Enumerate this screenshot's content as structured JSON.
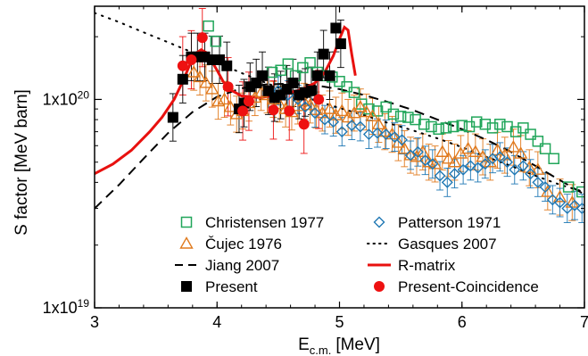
{
  "chart_data": {
    "type": "scatter",
    "xlabel": {
      "main": "E",
      "sub": "c.m.",
      "unit": "[MeV]"
    },
    "ylabel": "S factor [MeV barn]",
    "xlim": [
      3,
      7
    ],
    "ylim": [
      1e+19,
      2.8e+20
    ],
    "yscale": "log",
    "xticks": [
      "3",
      "4",
      "5",
      "6",
      "7"
    ],
    "yticks": [
      {
        "value": 1e+19,
        "base": "1x10",
        "exp": "19"
      },
      {
        "value": 1e+20,
        "base": "1x10",
        "exp": "20"
      }
    ],
    "legend_position": "bottom",
    "series": [
      {
        "name": "Christensen 1977",
        "marker": "open-square",
        "color": "#21a65a",
        "points": [
          [
            3.93,
            2.25e+20
          ],
          [
            3.99,
            1.9e+20
          ],
          [
            4.45,
            1.35e+20
          ],
          [
            4.52,
            1.38e+20
          ],
          [
            4.58,
            1.48e+20
          ],
          [
            4.64,
            1.3e+20
          ],
          [
            4.7,
            1.42e+20
          ],
          [
            4.76,
            1.5e+20
          ],
          [
            4.82,
            1.35e+20
          ],
          [
            4.88,
            1.3e+20
          ],
          [
            4.94,
            1.28e+20
          ],
          [
            5.0,
            1.22e+20
          ],
          [
            5.06,
            1.15e+20
          ],
          [
            5.12,
            1.08e+20
          ],
          [
            5.18,
            9.5e+19
          ],
          [
            5.24,
            9e+19
          ],
          [
            5.31,
            8.8e+19
          ],
          [
            5.38,
            9.2e+19
          ],
          [
            5.44,
            8.5e+19
          ],
          [
            5.5,
            8.3e+19
          ],
          [
            5.56,
            8.2e+19
          ],
          [
            5.62,
            8e+19
          ],
          [
            5.69,
            7.6e+19
          ],
          [
            5.75,
            7.4e+19
          ],
          [
            5.81,
            7.2e+19
          ],
          [
            5.87,
            7.3e+19
          ],
          [
            5.93,
            7.4e+19
          ],
          [
            6.0,
            7.5e+19
          ],
          [
            6.06,
            7.4e+19
          ],
          [
            6.12,
            7.8e+19
          ],
          [
            6.19,
            7.6e+19
          ],
          [
            6.25,
            7.3e+19
          ],
          [
            6.31,
            7.6e+19
          ],
          [
            6.37,
            7.4e+19
          ],
          [
            6.44,
            7e+19
          ],
          [
            6.5,
            7.3e+19
          ],
          [
            6.56,
            6.8e+19
          ],
          [
            6.62,
            6.3e+19
          ],
          [
            6.68,
            5.8e+19
          ],
          [
            6.75,
            5.2e+19
          ],
          [
            6.87,
            3.8e+19
          ],
          [
            6.98,
            3.6e+19
          ]
        ]
      },
      {
        "name": "Čujec 1976",
        "marker": "open-triangle",
        "color": "#e07a1e",
        "points": [
          [
            3.81,
            1.35e+20
          ],
          [
            3.86,
            1.28e+20
          ],
          [
            3.91,
            1.2e+20
          ],
          [
            3.96,
            1.12e+20
          ],
          [
            4.01,
            9.8e+19
          ],
          [
            4.06,
            1e+20
          ],
          [
            4.11,
            9.2e+19
          ],
          [
            4.16,
            8.5e+19
          ],
          [
            4.21,
            8.8e+19
          ],
          [
            4.26,
            9.6e+19
          ],
          [
            4.31,
            1.02e+20
          ],
          [
            4.36,
            1.08e+20
          ],
          [
            4.41,
            1.05e+20
          ],
          [
            4.46,
            1e+20
          ],
          [
            4.51,
            9.5e+19
          ],
          [
            4.56,
            9e+19
          ],
          [
            4.61,
            8.7e+19
          ],
          [
            4.66,
            9.3e+19
          ],
          [
            4.71,
            9.8e+19
          ],
          [
            4.76,
            9.4e+19
          ],
          [
            4.81,
            8.9e+19
          ],
          [
            4.86,
            8.6e+19
          ],
          [
            4.92,
            9e+19
          ],
          [
            4.97,
            8.4e+19
          ],
          [
            5.02,
            8.8e+19
          ],
          [
            5.07,
            8.2e+19
          ],
          [
            5.12,
            8.6e+19
          ],
          [
            5.17,
            9.2e+19
          ],
          [
            5.22,
            8.7e+19
          ],
          [
            5.27,
            8.3e+19
          ],
          [
            5.32,
            7.6e+19
          ],
          [
            5.37,
            7e+19
          ],
          [
            5.43,
            6.8e+19
          ],
          [
            5.48,
            6.2e+19
          ],
          [
            5.53,
            5.8e+19
          ],
          [
            5.58,
            5.4e+19
          ],
          [
            5.63,
            5.3e+19
          ],
          [
            5.68,
            5.6e+19
          ],
          [
            5.73,
            5e+19
          ],
          [
            5.78,
            4.9e+19
          ],
          [
            5.84,
            5.6e+19
          ],
          [
            5.89,
            5.2e+19
          ],
          [
            5.94,
            5e+19
          ],
          [
            5.99,
            5.5e+19
          ],
          [
            6.05,
            5.8e+19
          ],
          [
            6.11,
            5.6e+19
          ],
          [
            6.17,
            5.3e+19
          ],
          [
            6.23,
            5e+19
          ],
          [
            6.29,
            5.7e+19
          ],
          [
            6.35,
            5.4e+19
          ],
          [
            6.42,
            5.9e+19
          ],
          [
            6.48,
            5.5e+19
          ],
          [
            6.55,
            4.7e+19
          ],
          [
            6.62,
            4.6e+19
          ],
          [
            6.7,
            3.6e+19
          ],
          [
            6.8,
            3.4e+19
          ],
          [
            6.9,
            3.2e+19
          ]
        ]
      },
      {
        "name": "Patterson 1971",
        "marker": "open-diamond",
        "color": "#1f78b4",
        "points": [
          [
            4.5,
            1.1e+20
          ],
          [
            4.58,
            1.05e+20
          ],
          [
            4.66,
            1e+20
          ],
          [
            4.72,
            9.2e+19
          ],
          [
            4.8,
            8.6e+19
          ],
          [
            4.88,
            8e+19
          ],
          [
            4.95,
            7.8e+19
          ],
          [
            5.02,
            7e+19
          ],
          [
            5.1,
            7.5e+19
          ],
          [
            5.17,
            7.4e+19
          ],
          [
            5.24,
            6.8e+19
          ],
          [
            5.31,
            6.9e+19
          ],
          [
            5.38,
            6.8e+19
          ],
          [
            5.45,
            6.6e+19
          ],
          [
            5.51,
            6.4e+19
          ],
          [
            5.58,
            5.4e+19
          ],
          [
            5.64,
            5.6e+19
          ],
          [
            5.7,
            5.1e+19
          ],
          [
            5.76,
            4.9e+19
          ],
          [
            5.82,
            4.3e+19
          ],
          [
            5.88,
            4e+19
          ],
          [
            5.94,
            4.4e+19
          ],
          [
            6.01,
            4.6e+19
          ],
          [
            6.07,
            4.8e+19
          ],
          [
            6.13,
            4.7e+19
          ],
          [
            6.19,
            4.9e+19
          ],
          [
            6.25,
            5.2e+19
          ],
          [
            6.31,
            5.3e+19
          ],
          [
            6.37,
            5e+19
          ],
          [
            6.43,
            4.6e+19
          ],
          [
            6.5,
            4.8e+19
          ],
          [
            6.56,
            4.4e+19
          ],
          [
            6.62,
            4e+19
          ],
          [
            6.68,
            3.8e+19
          ],
          [
            6.74,
            3.3e+19
          ],
          [
            6.8,
            3.2e+19
          ],
          [
            6.86,
            3e+19
          ],
          [
            6.92,
            3.1e+19
          ],
          [
            6.98,
            3e+19
          ]
        ]
      },
      {
        "name": "Present",
        "marker": "filled-square",
        "color": "#000000",
        "points": [
          [
            3.64,
            8.2e+19
          ],
          [
            3.72,
            1.25e+20
          ],
          [
            3.79,
            1.6e+20
          ],
          [
            3.84,
            1.6e+20
          ],
          [
            3.9,
            1.6e+20
          ],
          [
            3.96,
            1.55e+20
          ],
          [
            4.02,
            1.55e+20
          ],
          [
            4.08,
            1.45e+20
          ],
          [
            4.18,
            9e+19
          ],
          [
            4.22,
            9.6e+19
          ],
          [
            4.27,
            1.15e+20
          ],
          [
            4.32,
            1.2e+20
          ],
          [
            4.37,
            1.3e+20
          ],
          [
            4.42,
            1.1e+20
          ],
          [
            4.47,
            1.02e+20
          ],
          [
            4.52,
            1.05e+20
          ],
          [
            4.57,
            1.12e+20
          ],
          [
            4.62,
            1.2e+20
          ],
          [
            4.67,
            1.05e+20
          ],
          [
            4.72,
            1.08e+20
          ],
          [
            4.77,
            1.1e+20
          ],
          [
            4.82,
            1.3e+20
          ],
          [
            4.87,
            1.65e+20
          ],
          [
            4.92,
            1.3e+20
          ],
          [
            4.97,
            2.2e+20
          ],
          [
            5.01,
            1.85e+20
          ]
        ]
      },
      {
        "name": "Present-Coincidence",
        "marker": "filled-circle",
        "color": "#ee1111",
        "points": [
          [
            3.72,
            1.45e+20
          ],
          [
            3.79,
            1.55e+20
          ],
          [
            3.88,
            1.98e+20
          ],
          [
            4.09,
            1.15e+20
          ],
          [
            4.21,
            8.8e+19
          ],
          [
            4.26,
            9.8e+19
          ],
          [
            4.46,
            8.9e+19
          ],
          [
            4.59,
            8.8e+19
          ],
          [
            4.71,
            7.6e+19
          ],
          [
            4.83,
            1e+20
          ]
        ]
      }
    ],
    "curves": [
      {
        "name": "Jiang 2007",
        "style": "dashed",
        "color": "#000000",
        "points": [
          [
            3.0,
            3e+19
          ],
          [
            3.2,
            3.9e+19
          ],
          [
            3.4,
            5.2e+19
          ],
          [
            3.6,
            6.9e+19
          ],
          [
            3.8,
            8.7e+19
          ],
          [
            4.0,
            1.03e+20
          ],
          [
            4.2,
            1.13e+20
          ],
          [
            4.4,
            1.18e+20
          ],
          [
            4.6,
            1.19e+20
          ],
          [
            4.8,
            1.17e+20
          ],
          [
            5.0,
            1.12e+20
          ],
          [
            5.2,
            1.05e+20
          ],
          [
            5.4,
            9.7e+19
          ],
          [
            5.6,
            8.9e+19
          ],
          [
            5.8,
            8e+19
          ],
          [
            6.0,
            7.2e+19
          ],
          [
            6.2,
            6.4e+19
          ],
          [
            6.4,
            5.6e+19
          ],
          [
            6.6,
            4.8e+19
          ],
          [
            6.8,
            4.1e+19
          ],
          [
            7.0,
            3.5e+19
          ]
        ]
      },
      {
        "name": "Gasques 2007",
        "style": "dotted",
        "color": "#000000",
        "points": [
          [
            3.0,
            2.6e+20
          ],
          [
            3.2,
            2.35e+20
          ],
          [
            3.4,
            2.1e+20
          ],
          [
            3.6,
            1.88e+20
          ],
          [
            3.8,
            1.68e+20
          ],
          [
            4.0,
            1.5e+20
          ],
          [
            4.2,
            1.34e+20
          ],
          [
            4.4,
            1.2e+20
          ],
          [
            4.6,
            1.08e+20
          ],
          [
            4.8,
            9.9e+19
          ],
          [
            5.0,
            9.1e+19
          ],
          [
            5.2,
            8.4e+19
          ],
          [
            5.4,
            7.7e+19
          ],
          [
            5.6,
            7.1e+19
          ],
          [
            5.8,
            6.5e+19
          ],
          [
            6.0,
            5.9e+19
          ],
          [
            6.2,
            5.3e+19
          ],
          [
            6.4,
            4.8e+19
          ],
          [
            6.6,
            4.3e+19
          ],
          [
            6.8,
            3.9e+19
          ],
          [
            7.0,
            3.6e+19
          ]
        ]
      },
      {
        "name": "R-matrix",
        "style": "solid",
        "color": "#e8110f",
        "points": [
          [
            3.0,
            4.4e+19
          ],
          [
            3.15,
            4.9e+19
          ],
          [
            3.3,
            5.7e+19
          ],
          [
            3.45,
            7e+19
          ],
          [
            3.55,
            8.2e+19
          ],
          [
            3.65,
            1e+20
          ],
          [
            3.72,
            1.22e+20
          ],
          [
            3.78,
            1.48e+20
          ],
          [
            3.83,
            1.67e+20
          ],
          [
            3.87,
            1.73e+20
          ],
          [
            3.91,
            1.68e+20
          ],
          [
            3.95,
            1.55e+20
          ],
          [
            4.0,
            1.38e+20
          ],
          [
            4.05,
            1.22e+20
          ],
          [
            4.1,
            1.12e+20
          ],
          [
            4.2,
            1.04e+20
          ],
          [
            4.35,
            1.02e+20
          ],
          [
            4.5,
            1.05e+20
          ],
          [
            4.6,
            1.08e+20
          ],
          [
            4.7,
            1.12e+20
          ],
          [
            4.8,
            1.2e+20
          ],
          [
            4.88,
            1.35e+20
          ],
          [
            4.95,
            1.62e+20
          ],
          [
            5.0,
            1.95e+20
          ],
          [
            5.04,
            2.22e+20
          ],
          [
            5.07,
            2.15e+20
          ],
          [
            5.1,
            1.65e+20
          ],
          [
            5.13,
            1.3e+20
          ]
        ]
      }
    ],
    "legend": [
      {
        "label": "Christensen 1977",
        "symbol": "open-square",
        "color": "#21a65a"
      },
      {
        "label": "Patterson 1971",
        "symbol": "open-diamond",
        "color": "#1f78b4"
      },
      {
        "label": "Čujec 1976",
        "symbol": "open-triangle",
        "color": "#e07a1e"
      },
      {
        "label": "Gasques 2007",
        "symbol": "dotted-line",
        "color": "#000000"
      },
      {
        "label": "Jiang 2007",
        "symbol": "dashed-line",
        "color": "#000000"
      },
      {
        "label": "R-matrix",
        "symbol": "solid-line",
        "color": "#e8110f"
      },
      {
        "label": "Present",
        "symbol": "filled-square",
        "color": "#000000"
      },
      {
        "label": "Present-Coincidence",
        "symbol": "filled-circle",
        "color": "#ee1111"
      }
    ]
  }
}
